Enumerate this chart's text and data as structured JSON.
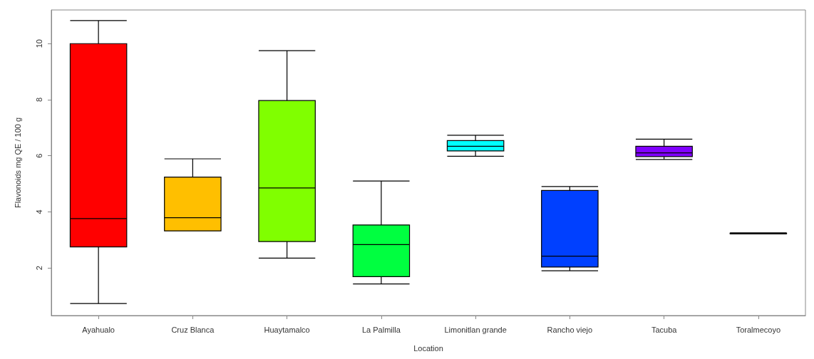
{
  "chart_data": {
    "type": "box",
    "xlabel": "Location",
    "ylabel": "Flavonoids mg QE / 100 g",
    "categories": [
      "Ayahualo",
      "Cruz Blanca",
      "Huaytamalco",
      "La Palmilla",
      "Limonitlan grande",
      "Rancho viejo",
      "Tacuba",
      "Toralmecoyo"
    ],
    "boxes": [
      {
        "low": 0.73,
        "q1": 2.75,
        "median": 3.76,
        "q3": 10,
        "high": 10.82
      },
      {
        "low": 3.32,
        "q1": 3.32,
        "median": 3.79,
        "q3": 5.24,
        "high": 5.89
      },
      {
        "low": 2.35,
        "q1": 2.94,
        "median": 4.85,
        "q3": 7.97,
        "high": 9.75
      },
      {
        "low": 1.43,
        "q1": 1.69,
        "median": 2.83,
        "q3": 3.53,
        "high": 5.1
      },
      {
        "low": 5.98,
        "q1": 6.17,
        "median": 6.34,
        "q3": 6.54,
        "high": 6.73
      },
      {
        "low": 1.9,
        "q1": 2.03,
        "median": 2.42,
        "q3": 4.76,
        "high": 4.9
      },
      {
        "low": 5.87,
        "q1": 5.97,
        "median": 6.1,
        "q3": 6.34,
        "high": 6.59
      },
      {
        "low": 3.21,
        "q1": 3.22,
        "median": 3.23,
        "q3": 3.24,
        "high": 3.25
      }
    ],
    "colors": [
      "#ff0000",
      "#ffbf00",
      "#80ff00",
      "#00ff40",
      "#00ffff",
      "#0040ff",
      "#8000ff",
      "#ff00bf"
    ],
    "ylim": [
      0.3,
      11.2
    ],
    "yticks": [
      2,
      4,
      6,
      8,
      10
    ],
    "grid": false
  }
}
